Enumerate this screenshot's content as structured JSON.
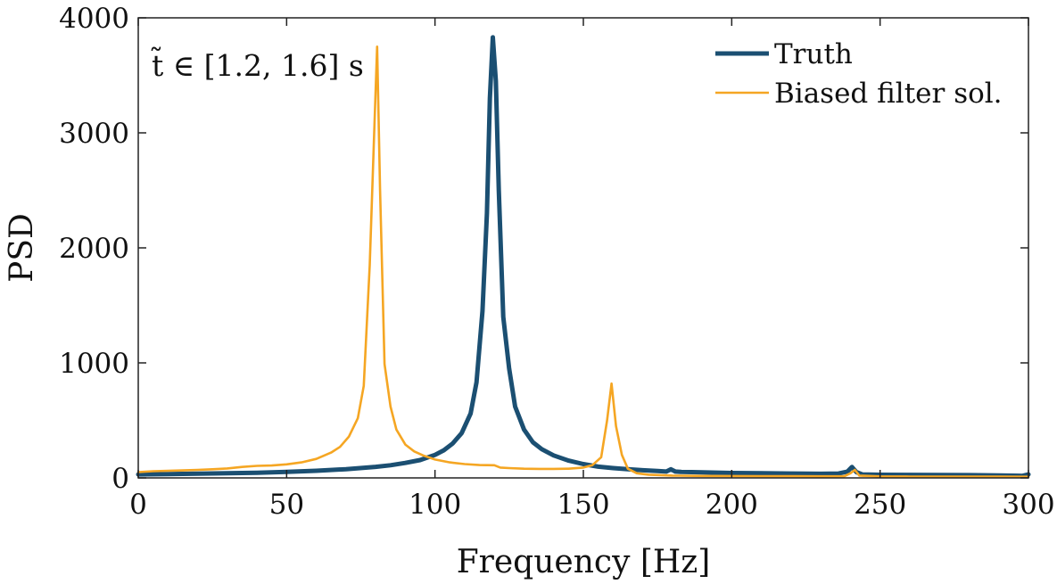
{
  "chart_data": {
    "type": "line",
    "xlabel": "Frequency [Hz]",
    "ylabel": "PSD",
    "xlim": [
      0,
      300
    ],
    "ylim": [
      0,
      4000
    ],
    "xticks": [
      0,
      50,
      100,
      150,
      200,
      250,
      300
    ],
    "yticks": [
      0,
      1000,
      2000,
      3000,
      4000
    ],
    "grid": false,
    "legend_position": "top-right",
    "annotation": "t̃ ∈ [1.2, 1.6] s",
    "series": [
      {
        "name": "Truth",
        "color": "#1b4f72",
        "line": "thick",
        "x": [
          0,
          10,
          20,
          30,
          40,
          50,
          60,
          70,
          80,
          85,
          90,
          95,
          100,
          103,
          106,
          109,
          112,
          114,
          116,
          117.5,
          118.5,
          119.5,
          120.5,
          121.5,
          123,
          125,
          127,
          130,
          133,
          136,
          140,
          145,
          150,
          155,
          160,
          165,
          170,
          175,
          178,
          179.5,
          181,
          183,
          190,
          200,
          210,
          220,
          230,
          236,
          239,
          240.5,
          242,
          244,
          250,
          260,
          270,
          280,
          290,
          298,
          300
        ],
        "values": [
          30,
          33,
          37,
          40,
          45,
          52,
          62,
          76,
          96,
          110,
          130,
          155,
          200,
          240,
          300,
          390,
          560,
          830,
          1450,
          2300,
          3300,
          3830,
          3450,
          2500,
          1400,
          950,
          620,
          420,
          310,
          250,
          195,
          150,
          120,
          98,
          85,
          75,
          67,
          60,
          55,
          75,
          55,
          52,
          48,
          43,
          40,
          38,
          36,
          38,
          55,
          95,
          50,
          30,
          27,
          26,
          25,
          24,
          22,
          18,
          30
        ]
      },
      {
        "name": "Biased filter sol.",
        "color": "#f5a623",
        "line": "thin",
        "x": [
          0,
          5,
          10,
          15,
          20,
          25,
          30,
          35,
          40,
          45,
          50,
          55,
          60,
          65,
          68,
          71,
          74,
          76,
          78,
          79.5,
          80.5,
          81.5,
          83,
          85,
          87,
          90,
          93,
          96,
          100,
          105,
          110,
          115,
          120,
          122,
          125,
          130,
          135,
          140,
          145,
          150,
          153,
          156,
          158,
          159.5,
          161,
          163,
          165,
          168,
          172,
          180,
          190,
          200,
          210,
          220,
          230,
          238,
          240,
          241.5,
          243,
          250,
          260,
          270,
          280,
          290,
          300
        ],
        "values": [
          50,
          58,
          62,
          65,
          70,
          75,
          82,
          95,
          105,
          108,
          118,
          135,
          165,
          220,
          270,
          360,
          520,
          800,
          1850,
          3000,
          3750,
          2500,
          990,
          620,
          420,
          290,
          230,
          195,
          160,
          135,
          120,
          112,
          110,
          90,
          85,
          80,
          78,
          78,
          80,
          90,
          110,
          180,
          500,
          820,
          450,
          200,
          80,
          40,
          28,
          20,
          17,
          16,
          15,
          15,
          14,
          15,
          40,
          70,
          20,
          13,
          12,
          12,
          11,
          11,
          10
        ]
      }
    ]
  }
}
